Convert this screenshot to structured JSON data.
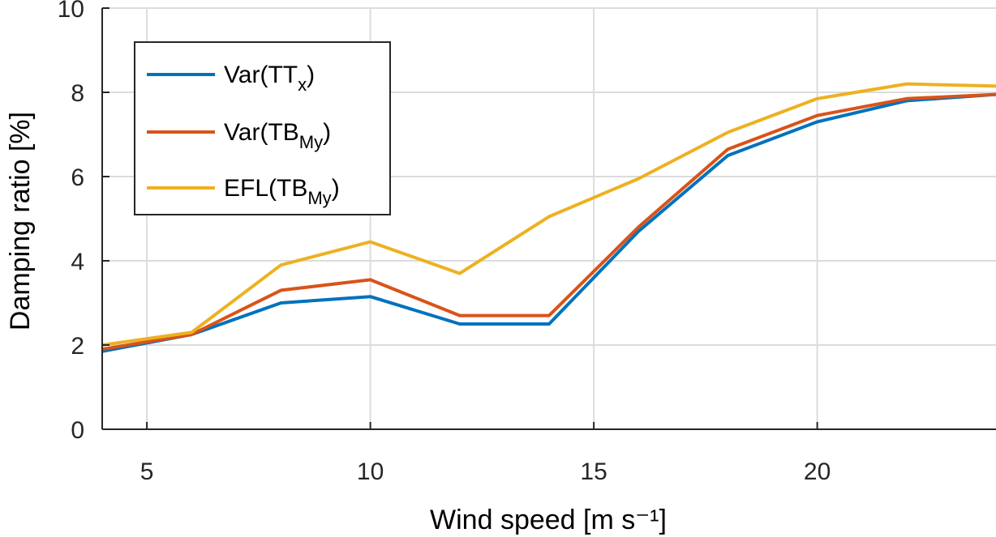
{
  "chart_data": {
    "type": "line",
    "xlabel": "Wind speed [m s⁻¹]",
    "ylabel": "Damping ratio [%]",
    "xlim": [
      4,
      24
    ],
    "ylim": [
      0,
      10
    ],
    "xticks": [
      5,
      10,
      15,
      20
    ],
    "yticks": [
      0,
      2,
      4,
      6,
      8,
      10
    ],
    "grid": true,
    "legend_position": "top-left",
    "series": [
      {
        "name": "Var(TT",
        "subscript": "x",
        "close": ")",
        "color": "#0072BD",
        "x": [
          4,
          6,
          8,
          10,
          12,
          14,
          16,
          18,
          20,
          22,
          24
        ],
        "y": [
          1.85,
          2.25,
          3.0,
          3.15,
          2.5,
          2.5,
          4.7,
          6.5,
          7.3,
          7.8,
          7.95
        ]
      },
      {
        "name": "Var(TB",
        "subscript": "My",
        "close": ")",
        "color": "#D95319",
        "x": [
          4,
          6,
          8,
          10,
          12,
          14,
          16,
          18,
          20,
          22,
          24
        ],
        "y": [
          1.9,
          2.25,
          3.3,
          3.55,
          2.7,
          2.7,
          4.8,
          6.65,
          7.45,
          7.85,
          7.95
        ]
      },
      {
        "name": "EFL(TB",
        "subscript": "My",
        "close": ")",
        "color": "#EDB120",
        "x": [
          4,
          6,
          8,
          10,
          12,
          14,
          16,
          18,
          20,
          22,
          24
        ],
        "y": [
          2.0,
          2.3,
          3.9,
          4.45,
          3.7,
          5.05,
          5.95,
          7.05,
          7.85,
          8.2,
          8.15
        ]
      }
    ]
  }
}
